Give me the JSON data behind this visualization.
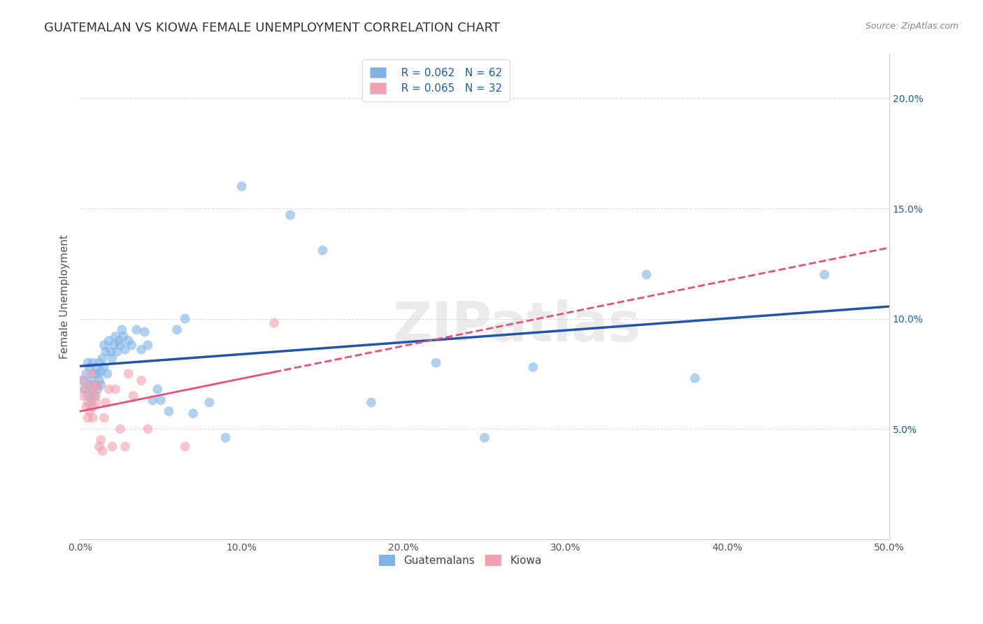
{
  "title": "GUATEMALAN VS KIOWA FEMALE UNEMPLOYMENT CORRELATION CHART",
  "source": "Source: ZipAtlas.com",
  "ylabel": "Female Unemployment",
  "xlim": [
    0,
    0.5
  ],
  "ylim": [
    0,
    0.22
  ],
  "xticks": [
    0.0,
    0.1,
    0.2,
    0.3,
    0.4,
    0.5
  ],
  "xticklabels": [
    "0.0%",
    "10.0%",
    "20.0%",
    "30.0%",
    "40.0%",
    "50.0%"
  ],
  "yticks_right": [
    0.0,
    0.05,
    0.1,
    0.15,
    0.2
  ],
  "yticklabels_right": [
    "",
    "5.0%",
    "10.0%",
    "15.0%",
    "20.0%"
  ],
  "background_color": "#ffffff",
  "watermark": "ZIPatlas",
  "guatemalan_color": "#7fb3e8",
  "kiowa_color": "#f4a0b0",
  "guatemalan_line_color": "#2255aa",
  "kiowa_line_color": "#e8507a",
  "legend_R_guatemalan": "R = 0.062",
  "legend_N_guatemalan": "N = 62",
  "legend_R_kiowa": "R = 0.065",
  "legend_N_kiowa": "N = 32",
  "guatemalan_x": [
    0.002,
    0.003,
    0.004,
    0.005,
    0.005,
    0.006,
    0.006,
    0.007,
    0.007,
    0.008,
    0.008,
    0.009,
    0.009,
    0.01,
    0.01,
    0.011,
    0.011,
    0.012,
    0.012,
    0.013,
    0.013,
    0.014,
    0.015,
    0.015,
    0.016,
    0.017,
    0.018,
    0.019,
    0.02,
    0.021,
    0.022,
    0.023,
    0.024,
    0.025,
    0.026,
    0.027,
    0.028,
    0.03,
    0.032,
    0.035,
    0.038,
    0.04,
    0.042,
    0.045,
    0.048,
    0.05,
    0.055,
    0.06,
    0.065,
    0.07,
    0.08,
    0.09,
    0.1,
    0.13,
    0.15,
    0.18,
    0.22,
    0.25,
    0.28,
    0.35,
    0.38,
    0.46
  ],
  "guatemalan_y": [
    0.072,
    0.068,
    0.075,
    0.065,
    0.08,
    0.07,
    0.078,
    0.062,
    0.072,
    0.068,
    0.08,
    0.065,
    0.075,
    0.07,
    0.078,
    0.068,
    0.075,
    0.072,
    0.08,
    0.07,
    0.076,
    0.082,
    0.078,
    0.088,
    0.085,
    0.075,
    0.09,
    0.085,
    0.082,
    0.088,
    0.092,
    0.085,
    0.09,
    0.088,
    0.095,
    0.092,
    0.086,
    0.09,
    0.088,
    0.095,
    0.086,
    0.094,
    0.088,
    0.063,
    0.068,
    0.063,
    0.058,
    0.095,
    0.1,
    0.057,
    0.062,
    0.046,
    0.16,
    0.147,
    0.131,
    0.062,
    0.08,
    0.046,
    0.078,
    0.12,
    0.073,
    0.12
  ],
  "kiowa_x": [
    0.001,
    0.002,
    0.003,
    0.004,
    0.005,
    0.005,
    0.006,
    0.006,
    0.007,
    0.007,
    0.008,
    0.008,
    0.009,
    0.01,
    0.01,
    0.011,
    0.012,
    0.013,
    0.014,
    0.015,
    0.016,
    0.018,
    0.02,
    0.022,
    0.025,
    0.028,
    0.03,
    0.033,
    0.038,
    0.042,
    0.065,
    0.12
  ],
  "kiowa_y": [
    0.072,
    0.065,
    0.068,
    0.06,
    0.055,
    0.062,
    0.058,
    0.07,
    0.065,
    0.075,
    0.055,
    0.06,
    0.068,
    0.062,
    0.065,
    0.07,
    0.042,
    0.045,
    0.04,
    0.055,
    0.062,
    0.068,
    0.042,
    0.068,
    0.05,
    0.042,
    0.075,
    0.065,
    0.072,
    0.05,
    0.042,
    0.098
  ],
  "title_fontsize": 13,
  "axis_label_fontsize": 11,
  "tick_fontsize": 10,
  "legend_fontsize": 11,
  "scatter_alpha": 0.6,
  "scatter_size": 100,
  "grid_color": "#dddddd",
  "legend_text_color": "#1a5fa8",
  "tick_color": "#555555",
  "ylabel_color": "#555555"
}
